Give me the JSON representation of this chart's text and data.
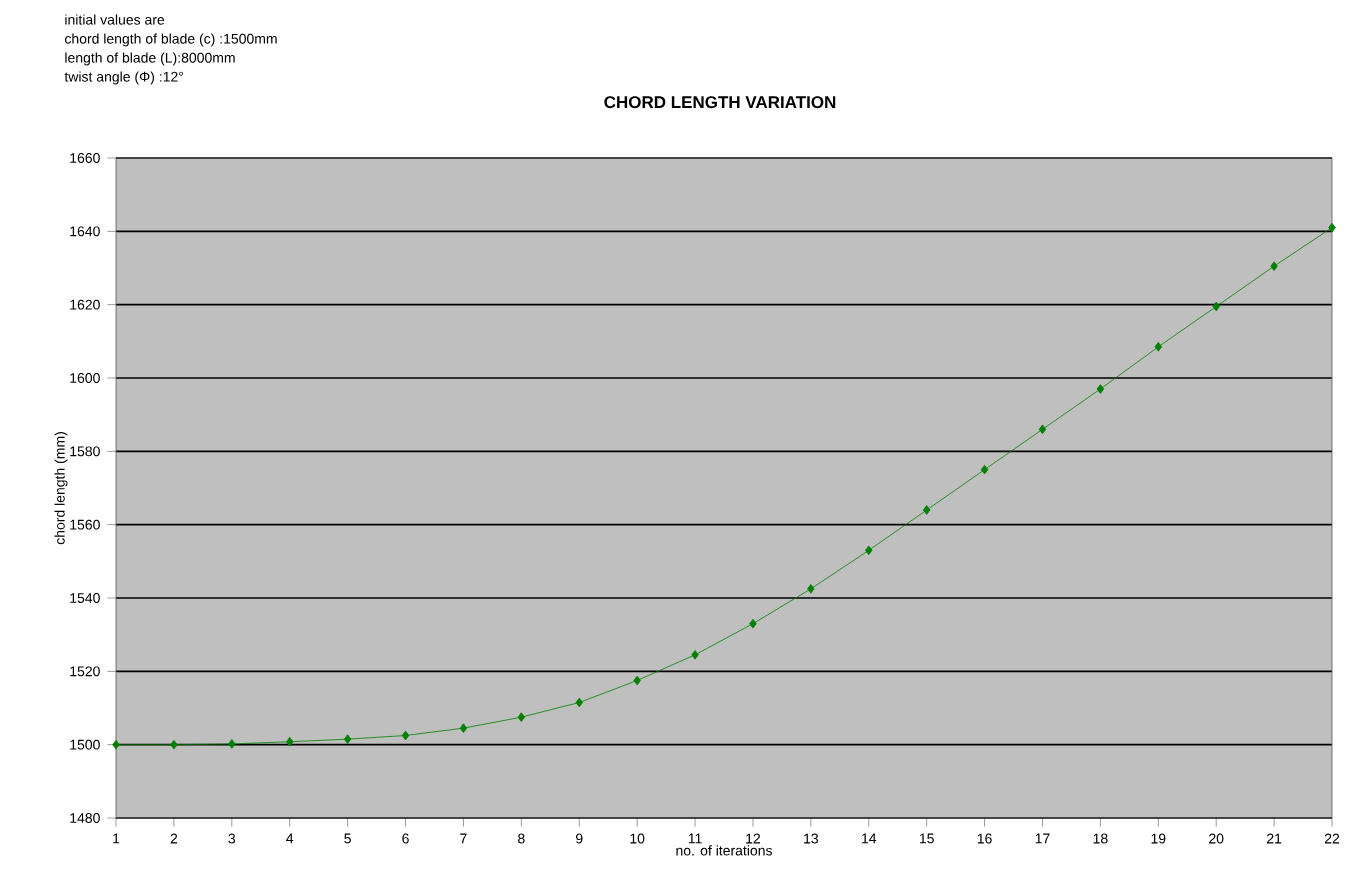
{
  "chart_data": {
    "type": "line",
    "title": "CHORD LENGTH VARIATION",
    "xlabel": "no. of iterations",
    "ylabel": "chord length (mm)",
    "annotations": [
      "initial values are",
      "chord length of blade (c) :1500mm",
      "length of blade (L):8000mm",
      "twist angle (Φ) :12°"
    ],
    "x": [
      1,
      2,
      3,
      4,
      5,
      6,
      7,
      8,
      9,
      10,
      11,
      12,
      13,
      14,
      15,
      16,
      17,
      18,
      19,
      20,
      21,
      22
    ],
    "series": [
      {
        "color": "#008000",
        "values": [
          1500,
          1500,
          1500.2,
          1500.8,
          1501.5,
          1502.5,
          1504.5,
          1507.5,
          1511.5,
          1517.5,
          1524.5,
          1533,
          1542.5,
          1553,
          1564,
          1575,
          1586,
          1597,
          1608.5,
          1619.5,
          1630.5,
          1641
        ]
      }
    ],
    "xlim": [
      1,
      22
    ],
    "xticks": [
      1,
      2,
      3,
      4,
      5,
      6,
      7,
      8,
      9,
      10,
      11,
      12,
      13,
      14,
      15,
      16,
      17,
      18,
      19,
      20,
      21,
      22
    ],
    "ylim": [
      1480,
      1660
    ],
    "yticks": [
      1480,
      1500,
      1520,
      1540,
      1560,
      1580,
      1600,
      1620,
      1640,
      1660
    ],
    "grid": "y",
    "marker": "diamond",
    "line_style": "solid"
  }
}
